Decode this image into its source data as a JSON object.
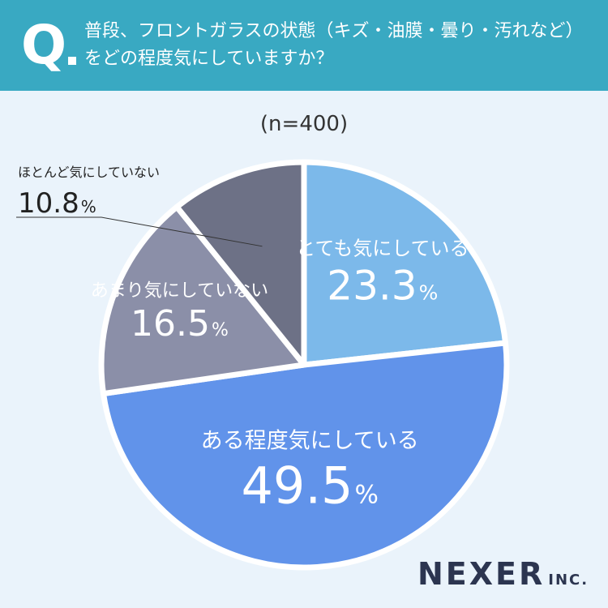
{
  "question": {
    "mark": "Q",
    "line1": "普段、フロントガラスの状態（キズ・油膜・曇り・汚れなど）",
    "line2": "をどの程度気にしていますか？"
  },
  "sample_label": "(n=400)",
  "logo": {
    "main": "NEXER",
    "sub": "INC."
  },
  "colors": {
    "header": "#39a9c2",
    "background": "#eaf3fb"
  },
  "chart_data": {
    "type": "pie",
    "title": "普段、フロントガラスの状態（キズ・油膜・曇り・汚れなど）をどの程度気にしていますか？",
    "start": "12 o'clock, clockwise",
    "unit": "%",
    "slices": [
      {
        "label": "とても気にしている",
        "value": 23.3,
        "value_text": "23.3",
        "color": "#7cb9ea",
        "label_color": "#ffffff"
      },
      {
        "label": "ある程度気にしている",
        "value": 49.5,
        "value_text": "49.5",
        "color": "#6193ea",
        "label_color": "#ffffff"
      },
      {
        "label": "あまり気にしていない",
        "value": 16.5,
        "value_text": "16.5",
        "color": "#8b8fa8",
        "label_color": "#ffffff"
      },
      {
        "label": "ほとんど気にしていない",
        "value": 10.8,
        "value_text": "10.8",
        "color": "#6d7186",
        "label_color": "#222222",
        "callout": true
      }
    ]
  }
}
